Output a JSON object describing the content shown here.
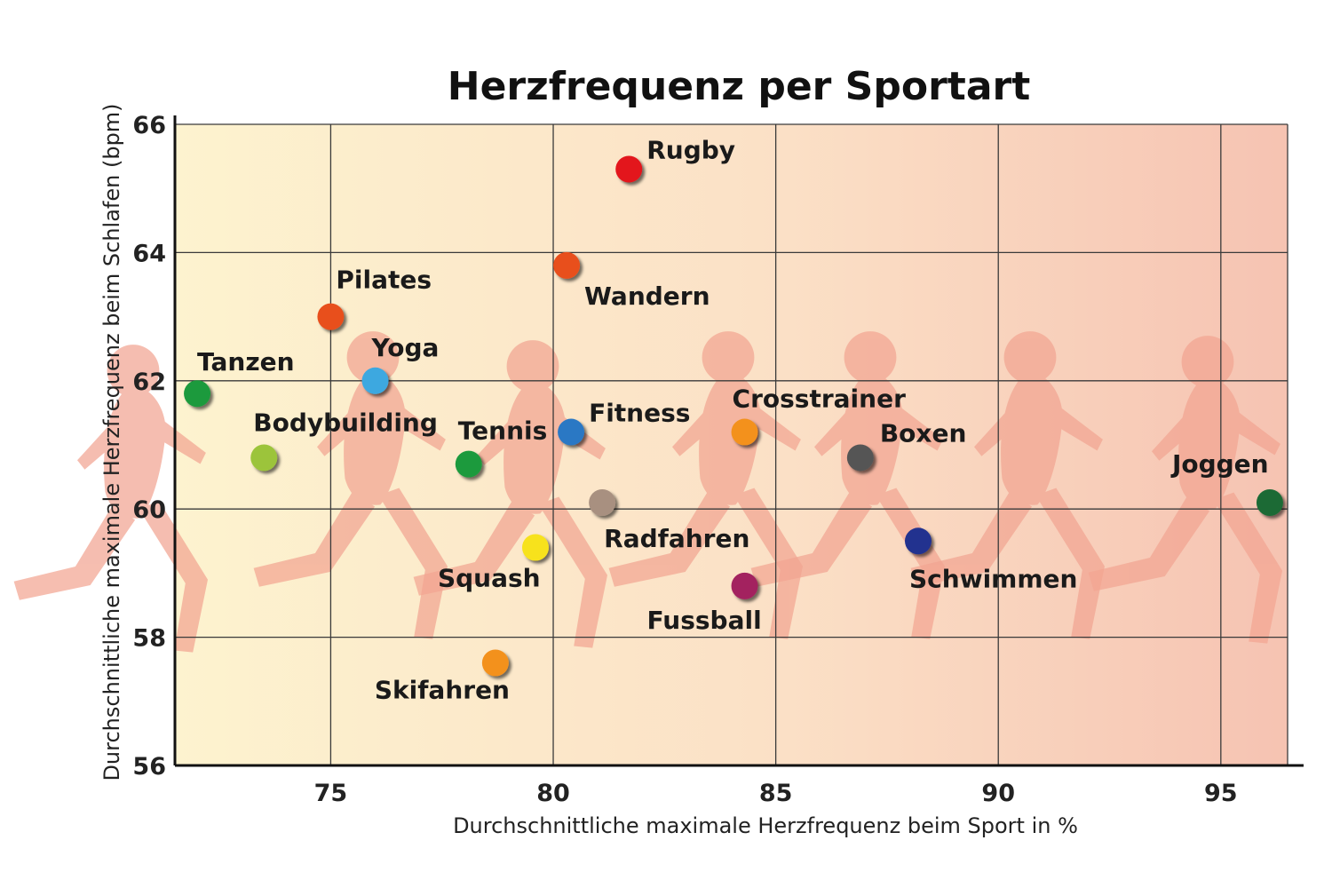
{
  "chart_data": {
    "type": "scatter",
    "title": "Herzfrequenz per Sportart",
    "xlabel": "Durchschnittliche maximale Herzfrequenz beim Sport in %",
    "ylabel": "Durchschnittliche maximale Herzfrequenz beim Schlafen (bpm)",
    "xlim": [
      71.5,
      96.5
    ],
    "ylim": [
      56,
      66
    ],
    "xticks": [
      75,
      80,
      85,
      90,
      95
    ],
    "yticks": [
      56,
      58,
      60,
      62,
      64,
      66
    ],
    "grid": true,
    "points": [
      {
        "label": "Rugby",
        "x": 81.7,
        "y": 65.3,
        "color": "#e3121b"
      },
      {
        "label": "Wandern",
        "x": 80.3,
        "y": 63.8,
        "color": "#e8501c"
      },
      {
        "label": "Pilates",
        "x": 75.0,
        "y": 63.0,
        "color": "#e8501c"
      },
      {
        "label": "Yoga",
        "x": 76.0,
        "y": 62.0,
        "color": "#3ca8e0"
      },
      {
        "label": "Tanzen",
        "x": 72.0,
        "y": 61.8,
        "color": "#1f9a3c"
      },
      {
        "label": "Bodybuilding",
        "x": 73.5,
        "y": 60.8,
        "color": "#9cc43a"
      },
      {
        "label": "Tennis",
        "x": 78.1,
        "y": 60.7,
        "color": "#1f9a3c"
      },
      {
        "label": "Fitness",
        "x": 80.4,
        "y": 61.2,
        "color": "#2a78c4"
      },
      {
        "label": "Crosstrainer",
        "x": 84.3,
        "y": 61.2,
        "color": "#f3911e"
      },
      {
        "label": "Boxen",
        "x": 86.9,
        "y": 60.8,
        "color": "#555555"
      },
      {
        "label": "Joggen",
        "x": 96.1,
        "y": 60.1,
        "color": "#1c6b34"
      },
      {
        "label": "Radfahren",
        "x": 81.1,
        "y": 60.1,
        "color": "#a89080"
      },
      {
        "label": "Squash",
        "x": 79.6,
        "y": 59.4,
        "color": "#f7e21c"
      },
      {
        "label": "Schwimmen",
        "x": 88.2,
        "y": 59.5,
        "color": "#23308f"
      },
      {
        "label": "Fussball",
        "x": 84.3,
        "y": 58.8,
        "color": "#a3215e"
      },
      {
        "label": "Skifahren",
        "x": 78.7,
        "y": 57.6,
        "color": "#f3911e"
      }
    ]
  }
}
